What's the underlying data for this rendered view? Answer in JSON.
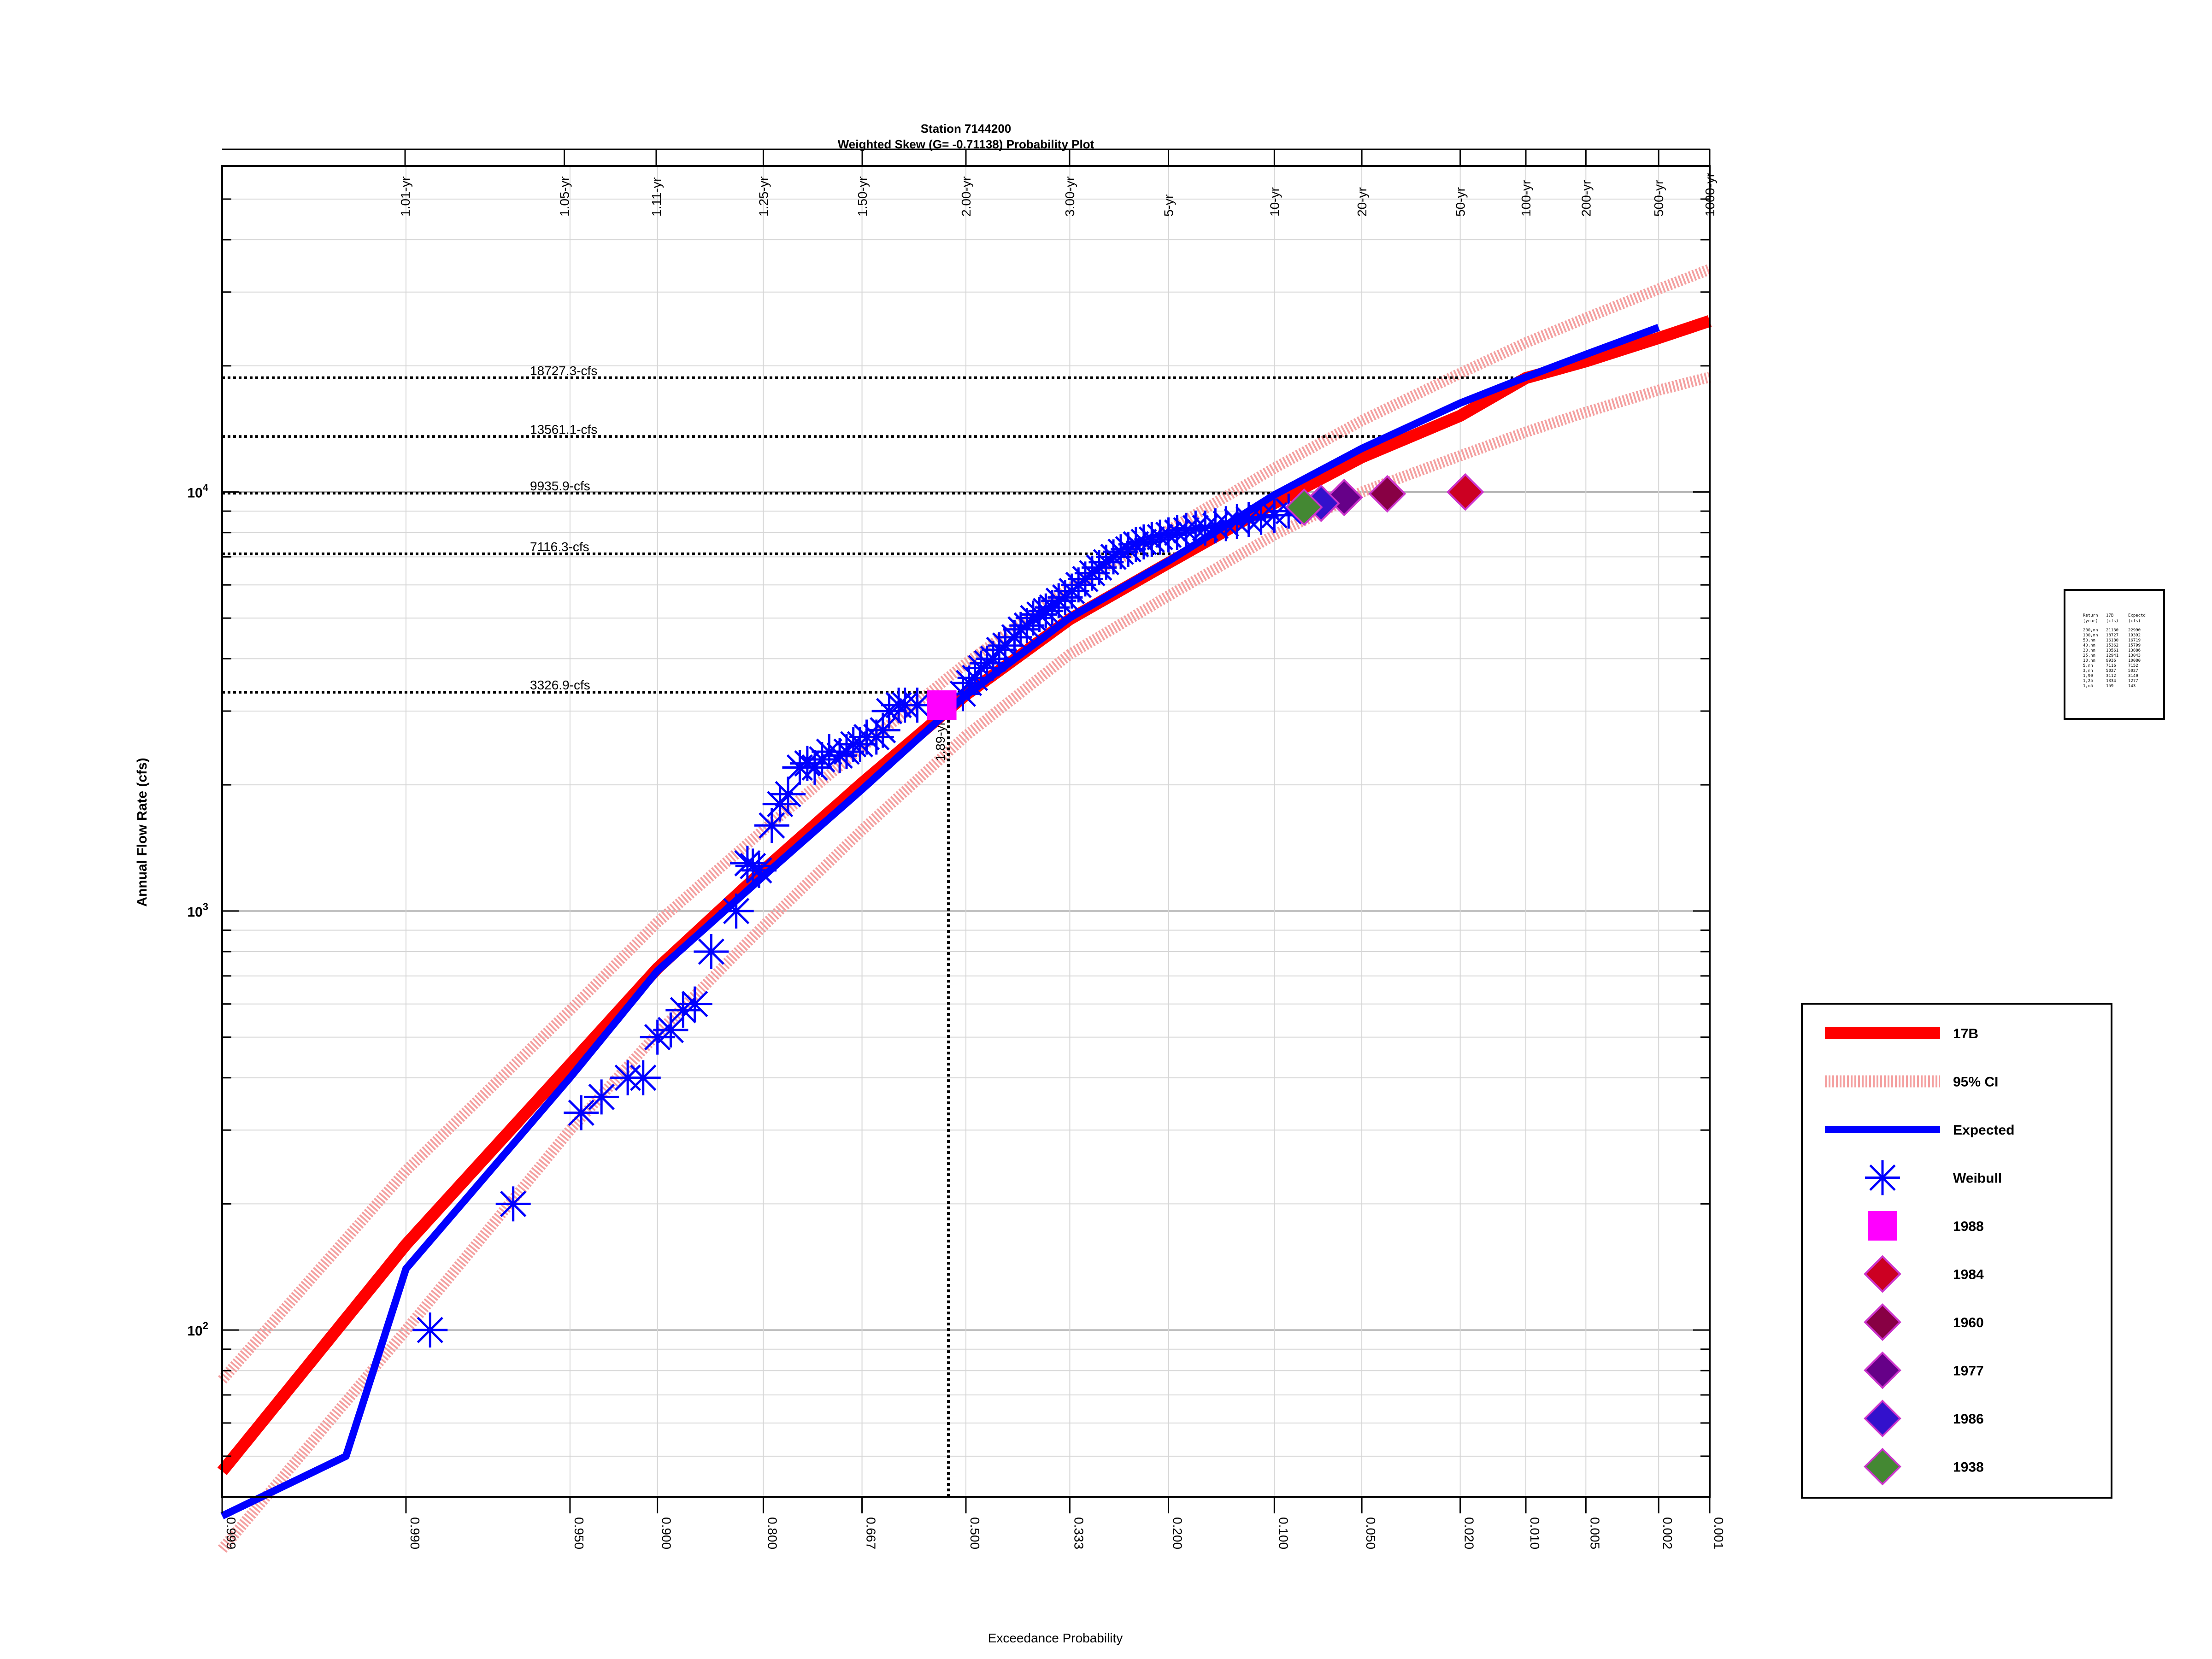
{
  "chart_data": {
    "type": "scatter",
    "title": "Station 7144200",
    "subtitle": "Weighted Skew (G= -0.71138) Probability Plot",
    "xlabel": "Exceedance Probability",
    "ylabel": "Annual Flow Rate (cfs)",
    "y_scale": "log",
    "ylim": [
      40,
      60000
    ],
    "x_scale": "normal-probability",
    "xlim": [
      0.999,
      0.001
    ],
    "grid": true,
    "legend_position": "right",
    "y_ticks": [
      {
        "value": 100,
        "base": "10",
        "exp": "2"
      },
      {
        "value": 1000,
        "base": "10",
        "exp": "3"
      },
      {
        "value": 10000,
        "base": "10",
        "exp": "4"
      }
    ],
    "bottom_ticks": [
      {
        "p": 0.999,
        "label": "0.999"
      },
      {
        "p": 0.99,
        "label": "0.990"
      },
      {
        "p": 0.95,
        "label": "0.950"
      },
      {
        "p": 0.9,
        "label": "0.900"
      },
      {
        "p": 0.8,
        "label": "0.800"
      },
      {
        "p": 0.667,
        "label": "0.667"
      },
      {
        "p": 0.5,
        "label": "0.500"
      },
      {
        "p": 0.333,
        "label": "0.333"
      },
      {
        "p": 0.2,
        "label": "0.200"
      },
      {
        "p": 0.1,
        "label": "0.100"
      },
      {
        "p": 0.05,
        "label": "0.050"
      },
      {
        "p": 0.02,
        "label": "0.020"
      },
      {
        "p": 0.01,
        "label": "0.010"
      },
      {
        "p": 0.005,
        "label": "0.005"
      },
      {
        "p": 0.002,
        "label": "0.002"
      },
      {
        "p": 0.001,
        "label": "0.001"
      }
    ],
    "top_ticks": [
      {
        "p": 0.990099,
        "label": "1.01-yr"
      },
      {
        "p": 0.952381,
        "label": "1.05-yr"
      },
      {
        "p": 0.900901,
        "label": "1.11-yr"
      },
      {
        "p": 0.8,
        "label": "1.25-yr"
      },
      {
        "p": 0.666667,
        "label": "1.50-yr"
      },
      {
        "p": 0.5,
        "label": "2.00-yr"
      },
      {
        "p": 0.333333,
        "label": "3.00-yr"
      },
      {
        "p": 0.2,
        "label": "5-yr"
      },
      {
        "p": 0.1,
        "label": "10-yr"
      },
      {
        "p": 0.05,
        "label": "20-yr"
      },
      {
        "p": 0.02,
        "label": "50-yr"
      },
      {
        "p": 0.01,
        "label": "100-yr"
      },
      {
        "p": 0.005,
        "label": "200-yr"
      },
      {
        "p": 0.002,
        "label": "500-yr"
      },
      {
        "p": 0.001,
        "label": "1000-yr"
      }
    ],
    "reference_lines": [
      {
        "q": 18727.3,
        "label": "18727.3-cfs"
      },
      {
        "q": 13561.1,
        "label": "13561.1-cfs"
      },
      {
        "q": 9935.9,
        "label": "9935.9-cfs"
      },
      {
        "q": 7116.3,
        "label": "7116.3-cfs"
      },
      {
        "q": 3326.9,
        "label": "3326.9-cfs"
      }
    ],
    "marker_line": {
      "p": 0.529,
      "q": 3326.9,
      "label": "1.89-yr"
    },
    "series": [
      {
        "name": "17B",
        "kind": "line",
        "color": "#ff0000",
        "x": [
          0.999,
          0.99,
          0.95,
          0.9,
          0.8,
          0.667,
          0.5,
          0.333,
          0.2,
          0.1,
          0.05,
          0.02,
          0.01,
          0.005,
          0.002,
          0.001
        ],
        "y": [
          46,
          160,
          430,
          730,
          1250,
          2020,
          3280,
          4970,
          6770,
          9400,
          12100,
          15200,
          18700,
          20500,
          23300,
          25600
        ]
      },
      {
        "name": "95% CI",
        "kind": "band-upper",
        "color": "#f4a0a0",
        "x": [
          0.999,
          0.99,
          0.95,
          0.9,
          0.8,
          0.667,
          0.5,
          0.333,
          0.2,
          0.1,
          0.05,
          0.02,
          0.01,
          0.005,
          0.002,
          0.001
        ],
        "y": [
          76,
          240,
          580,
          940,
          1560,
          2460,
          3900,
          5900,
          8100,
          11400,
          14800,
          19200,
          22700,
          26000,
          30500,
          34000
        ]
      },
      {
        "name": "95% CI lower",
        "kind": "band-lower",
        "color": "#f4a0a0",
        "x": [
          0.999,
          0.99,
          0.95,
          0.9,
          0.8,
          0.667,
          0.5,
          0.333,
          0.2,
          0.1,
          0.05,
          0.02,
          0.01,
          0.005,
          0.002,
          0.001
        ],
        "y": [
          30,
          100,
          300,
          510,
          920,
          1560,
          2620,
          4100,
          5650,
          7900,
          10000,
          12200,
          13900,
          15500,
          17500,
          18800
        ]
      },
      {
        "name": "Expected",
        "kind": "line",
        "color": "#0000ff",
        "x": [
          0.999,
          0.995,
          0.99,
          0.95,
          0.9,
          0.8,
          0.667,
          0.5,
          0.333,
          0.2,
          0.1,
          0.05,
          0.02,
          0.01,
          0.005,
          0.002
        ],
        "y": [
          36,
          50,
          140,
          400,
          720,
          1210,
          1950,
          3270,
          5010,
          6840,
          9840,
          12700,
          16300,
          18800,
          21300,
          24700
        ]
      },
      {
        "name": "Weibull",
        "kind": "points",
        "color": "#0000ff",
        "x": [
          0.987,
          0.97,
          0.945,
          0.935,
          0.92,
          0.91,
          0.9,
          0.89,
          0.88,
          0.87,
          0.855,
          0.83,
          0.818,
          0.812,
          0.805,
          0.79,
          0.78,
          0.77,
          0.755,
          0.745,
          0.735,
          0.725,
          0.715,
          0.7,
          0.69,
          0.68,
          0.67,
          0.66,
          0.645,
          0.635,
          0.625,
          0.61,
          0.6,
          0.58,
          0.505,
          0.495,
          0.485,
          0.475,
          0.465,
          0.455,
          0.445,
          0.435,
          0.42,
          0.41,
          0.4,
          0.39,
          0.38,
          0.37,
          0.36,
          0.35,
          0.34,
          0.33,
          0.32,
          0.31,
          0.3,
          0.29,
          0.28,
          0.27,
          0.26,
          0.25,
          0.24,
          0.23,
          0.22,
          0.21,
          0.2,
          0.19,
          0.18,
          0.17,
          0.16,
          0.15,
          0.14,
          0.13,
          0.12,
          0.11,
          0.1,
          0.09
        ],
        "y": [
          100,
          200,
          330,
          360,
          400,
          400,
          500,
          520,
          580,
          600,
          800,
          1000,
          1300,
          1280,
          1250,
          1600,
          1800,
          1900,
          2200,
          2250,
          2200,
          2300,
          2400,
          2350,
          2400,
          2500,
          2500,
          2600,
          2600,
          2700,
          3000,
          3100,
          3100,
          3100,
          3300,
          3500,
          3600,
          3800,
          3900,
          4000,
          4200,
          4300,
          4500,
          4700,
          4800,
          5000,
          5100,
          5200,
          5300,
          5500,
          5600,
          5800,
          6000,
          6200,
          6400,
          6600,
          6800,
          7000,
          7200,
          7300,
          7500,
          7600,
          7700,
          7800,
          7900,
          8000,
          8100,
          8200,
          8200,
          8300,
          8400,
          8500,
          8600,
          8700,
          8800,
          9000
        ]
      }
    ],
    "historic_points": [
      {
        "name": "1988",
        "shape": "square",
        "color": "#ff00ff",
        "x": 0.54,
        "y": 3100
      },
      {
        "name": "1984",
        "shape": "diamond",
        "color": "#cc0022",
        "x": 0.019,
        "y": 10000
      },
      {
        "name": "1960",
        "shape": "diamond",
        "color": "#880044",
        "x": 0.04,
        "y": 9900
      },
      {
        "name": "1977",
        "shape": "diamond",
        "color": "#660088",
        "x": 0.058,
        "y": 9700
      },
      {
        "name": "1986",
        "shape": "diamond",
        "color": "#3311cc",
        "x": 0.07,
        "y": 9400
      },
      {
        "name": "1938",
        "shape": "diamond",
        "color": "#448833",
        "x": 0.08,
        "y": 9200
      }
    ],
    "legend": [
      {
        "label": "17B",
        "kind": "line",
        "color": "#ff0000"
      },
      {
        "label": "95% CI",
        "kind": "band",
        "color": "#f4a0a0"
      },
      {
        "label": "Expected",
        "kind": "line",
        "color": "#0000ff"
      },
      {
        "label": "Weibull",
        "kind": "asterisk",
        "color": "#0000ff"
      },
      {
        "label": "1988",
        "kind": "square",
        "color": "#ff00ff"
      },
      {
        "label": "1984",
        "kind": "diamond",
        "color": "#cc0022"
      },
      {
        "label": "1960",
        "kind": "diamond",
        "color": "#880044"
      },
      {
        "label": "1977",
        "kind": "diamond",
        "color": "#660088"
      },
      {
        "label": "1986",
        "kind": "diamond",
        "color": "#3311cc"
      },
      {
        "label": "1938",
        "kind": "diamond",
        "color": "#448833"
      }
    ],
    "summary_table": {
      "headers": [
        "Return",
        "17B",
        "Expectd"
      ],
      "units": [
        "(year)",
        "(cfs)",
        "(cfs)"
      ],
      "rows": [
        [
          "200,nn",
          "21130",
          "22990"
        ],
        [
          "100,nn",
          "18727",
          "19392"
        ],
        [
          "50,nn",
          "16180",
          "16719"
        ],
        [
          "40,nn",
          "15362",
          "15799"
        ],
        [
          "30,nn",
          "13561",
          "13886"
        ],
        [
          "25,nn",
          "12941",
          "13043"
        ],
        [
          "10,nn",
          "9936",
          "10080"
        ],
        [
          "5,nn",
          "7116",
          "7152"
        ],
        [
          "3,nn",
          "5027",
          "5027"
        ],
        [
          "1,90",
          "3112",
          "3140"
        ],
        [
          "1,25",
          "1334",
          "1277"
        ],
        [
          "1,n5",
          "159",
          "143"
        ]
      ]
    }
  }
}
